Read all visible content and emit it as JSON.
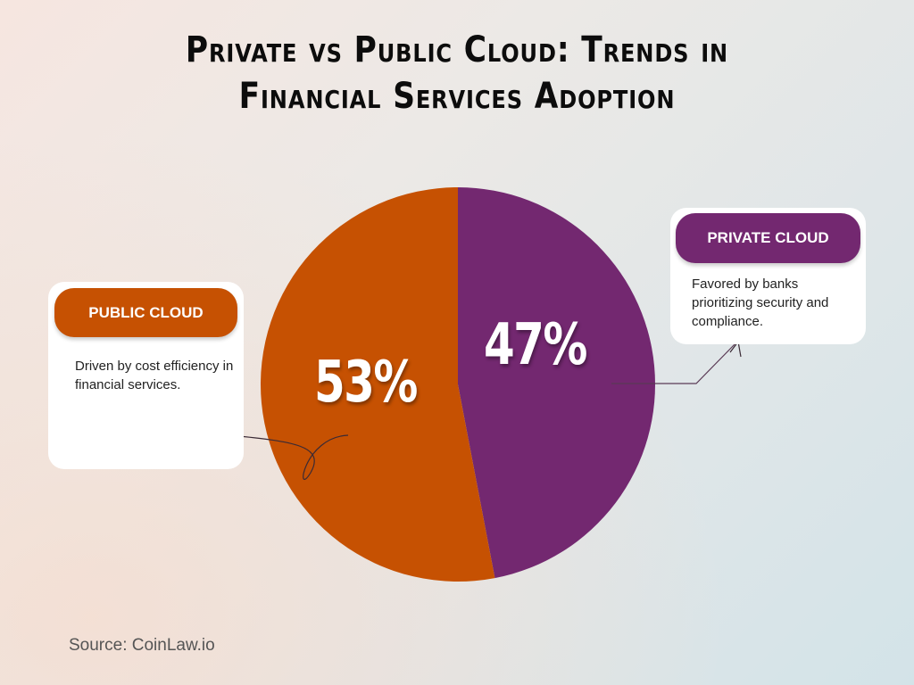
{
  "title": "Private vs Public Cloud: Trends in Financial Services Adoption",
  "title_line1": "Private vs Public Cloud: Trends in",
  "title_line2": "Financial Services Adoption",
  "chart_data": {
    "type": "pie",
    "title": "Private vs Public Cloud: Trends in Financial Services Adoption",
    "categories": [
      "Private Cloud",
      "Public Cloud"
    ],
    "values": [
      47,
      53
    ],
    "labels": [
      "47%",
      "53%"
    ],
    "colors": [
      "#732870",
      "#c65102"
    ],
    "legend": [
      {
        "label": "PRIVATE CLOUD",
        "description": "Favored by banks prioritizing security and compliance.",
        "color": "#732870"
      },
      {
        "label": "PUBLIC CLOUD",
        "description": "Driven by cost efficiency in financial services.",
        "color": "#c65102"
      }
    ]
  },
  "source": "Source: CoinLaw.io"
}
